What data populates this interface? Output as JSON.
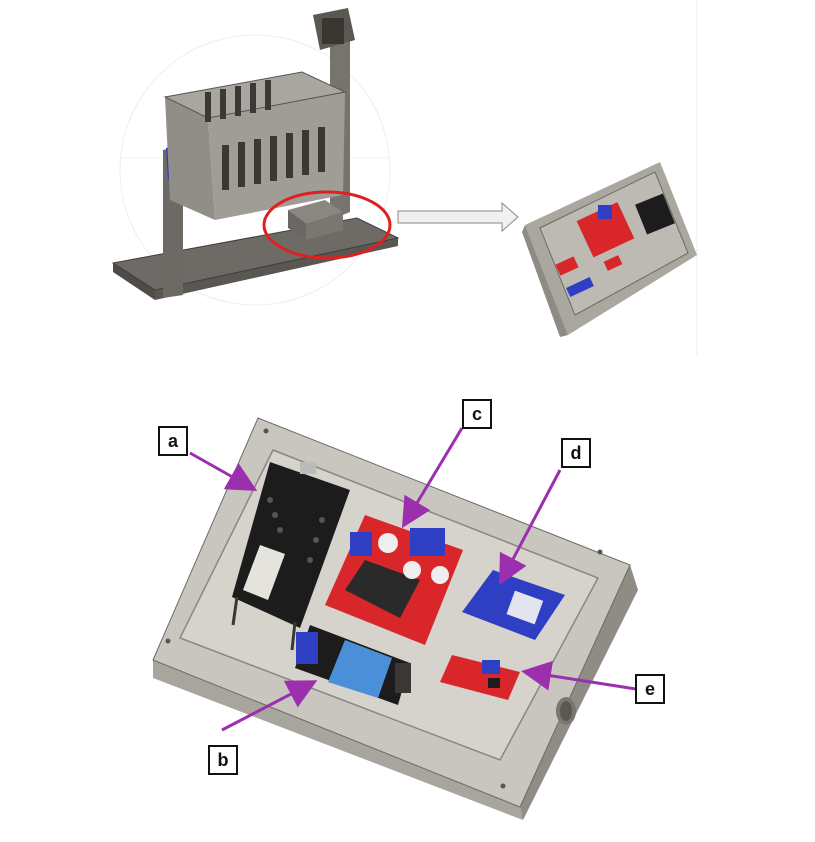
{
  "labels": {
    "a": "a",
    "b": "b",
    "c": "c",
    "d": "d",
    "e": "e"
  },
  "colors": {
    "callout": "#9b2fae",
    "highlight_ring": "#e02020",
    "enclosure": "#c9c6bf",
    "pcb_red": "#d8262b",
    "pcb_blue": "#2f3fc4",
    "pcb_black": "#1c1c1c"
  }
}
